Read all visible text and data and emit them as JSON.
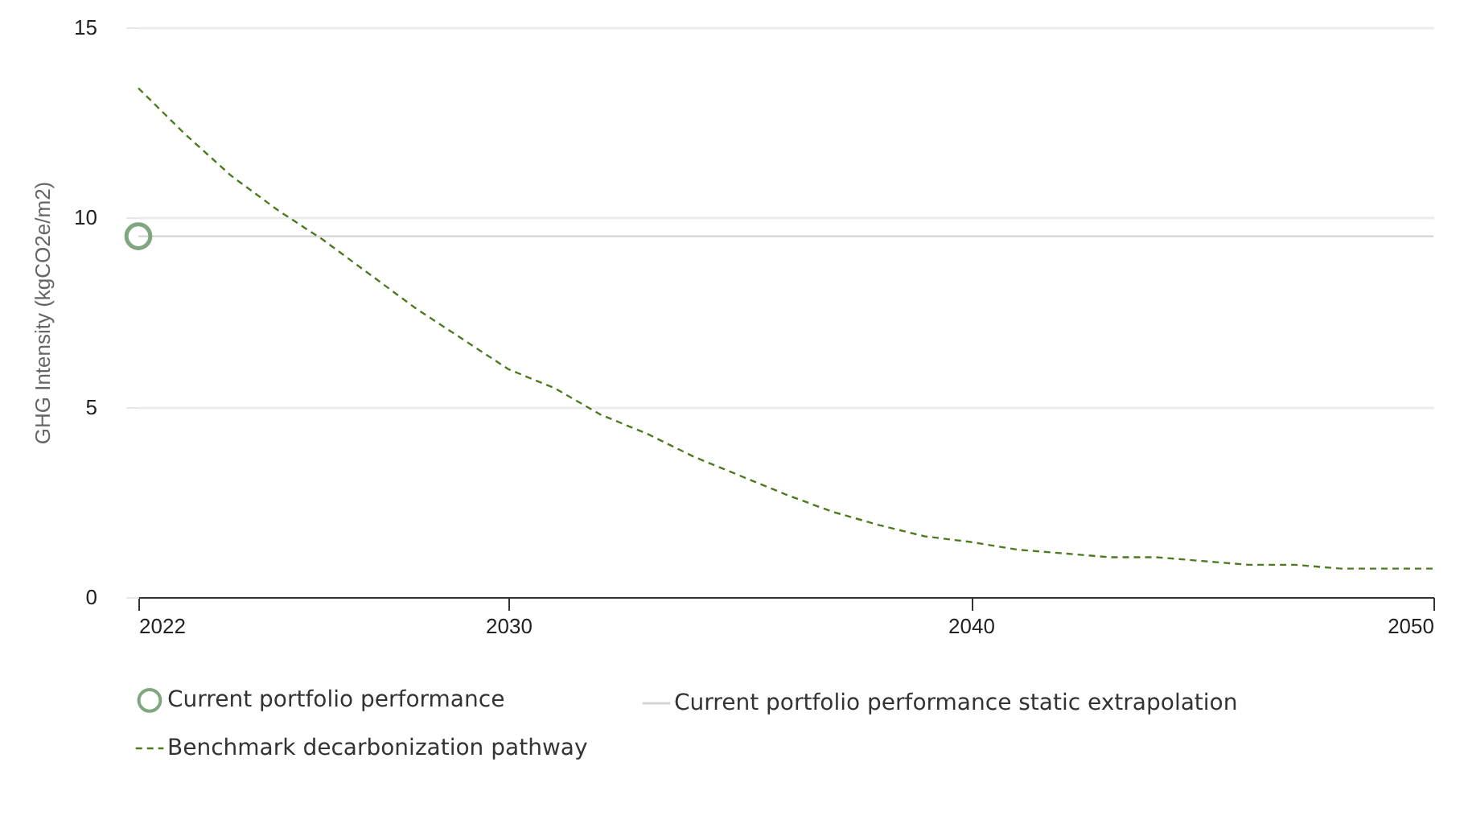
{
  "chart_data": {
    "type": "line",
    "ylabel": "GHG Intensity (kgCO2e/m2)",
    "xlim": [
      2022,
      2050
    ],
    "xticks": [
      2022,
      2030,
      2040,
      2050
    ],
    "ylim": [
      0,
      15
    ],
    "yticks": [
      0,
      5,
      10,
      15
    ],
    "grid": "y",
    "legend": "bottom",
    "series": [
      {
        "name": "Current portfolio performance",
        "type": "scatter",
        "marker": "circle",
        "color": "#7fa67f",
        "x": [
          2022
        ],
        "values": [
          9.5
        ]
      },
      {
        "name": "Current portfolio performance static extrapolation",
        "type": "line",
        "line_style": "solid",
        "color": "#d4d4d4",
        "x": [
          2022,
          2050
        ],
        "values": [
          9.5,
          9.5
        ]
      },
      {
        "name": "Benchmark decarbonization pathway",
        "type": "line",
        "line_style": "dashed",
        "color": "#4d7a1f",
        "x": [
          2022,
          2023,
          2024,
          2025,
          2026,
          2027,
          2028,
          2029,
          2030,
          2031,
          2032,
          2033,
          2034,
          2035,
          2036,
          2037,
          2038,
          2039,
          2040,
          2041,
          2042,
          2043,
          2044,
          2045,
          2046,
          2047,
          2048,
          2049,
          2050
        ],
        "values": [
          13.4,
          12.2,
          11.1,
          10.2,
          9.4,
          8.5,
          7.6,
          6.8,
          6.0,
          5.5,
          4.8,
          4.3,
          3.7,
          3.2,
          2.7,
          2.25,
          1.9,
          1.6,
          1.45,
          1.25,
          1.15,
          1.05,
          1.05,
          0.95,
          0.85,
          0.85,
          0.75,
          0.75,
          0.75
        ]
      }
    ]
  }
}
